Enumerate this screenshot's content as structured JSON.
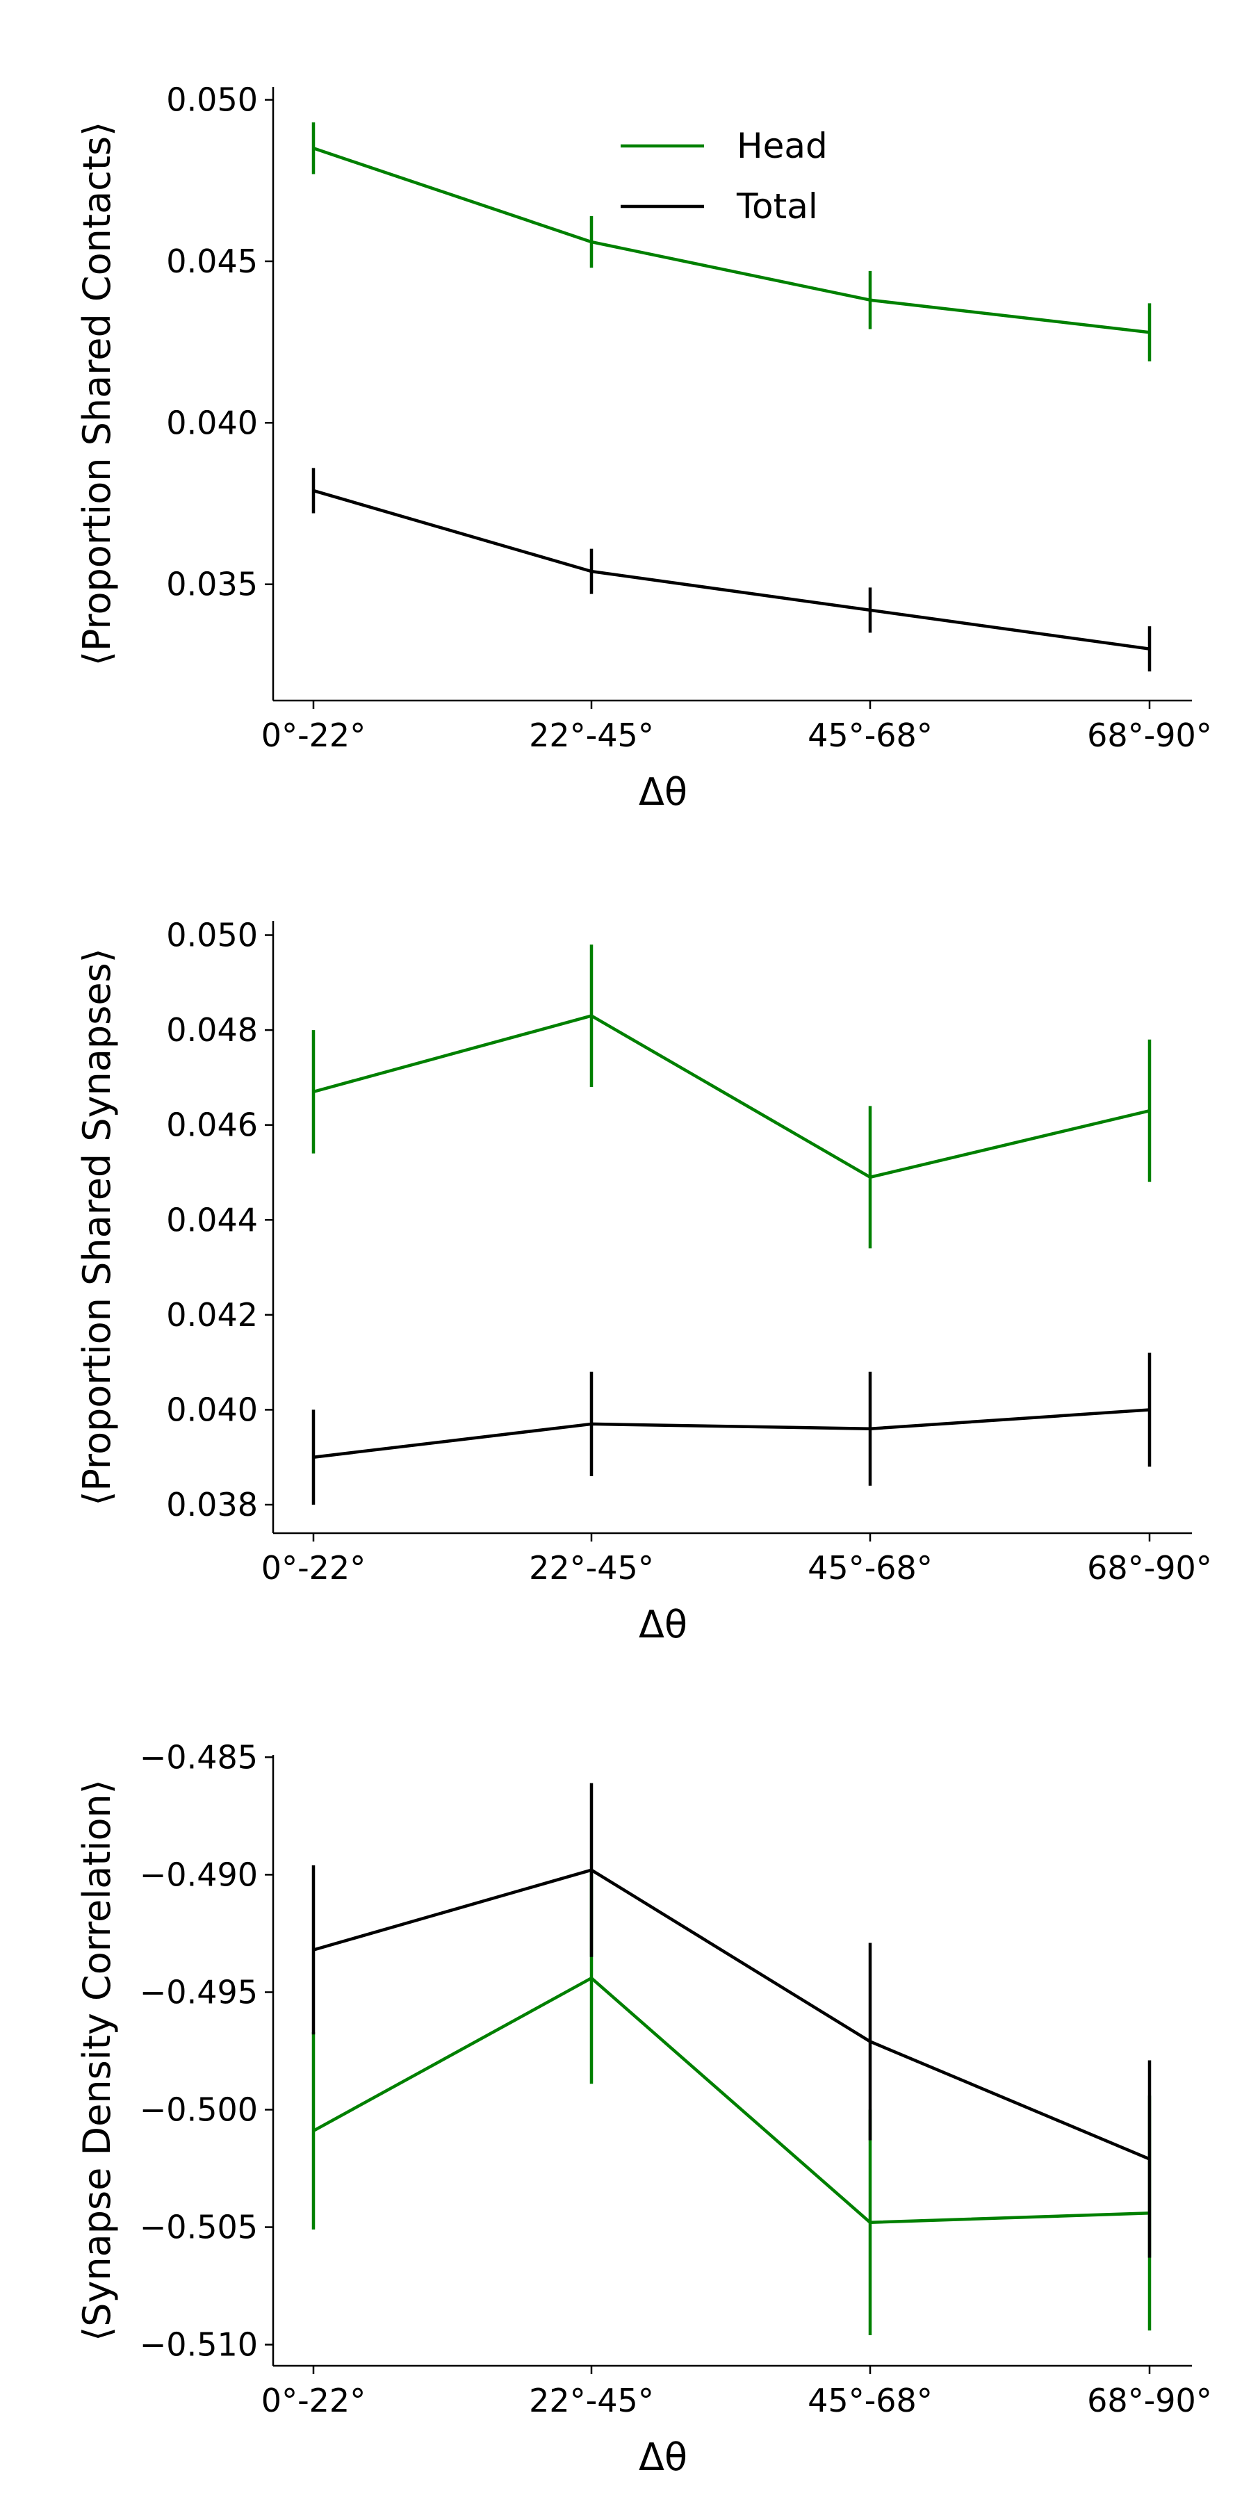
{
  "legend": [
    {
      "label": "Head",
      "color": "#008000"
    },
    {
      "label": "Total",
      "color": "#000000"
    }
  ],
  "chart_data": [
    {
      "type": "line",
      "title": "",
      "xlabel": "Δθ",
      "ylabel": "⟨Proportion Shared Contacts⟩",
      "categories": [
        "0°-22°",
        "22°-45°",
        "45°-68°",
        "68°-90°"
      ],
      "ylim": [
        0.0314,
        0.0504
      ],
      "yticks": [
        0.035,
        0.04,
        0.045,
        0.05
      ],
      "ytick_labels": [
        "0.035",
        "0.040",
        "0.045",
        "0.050"
      ],
      "legend_position": "top-center",
      "series": [
        {
          "name": "Head",
          "color": "#008000",
          "values": [
            0.0485,
            0.0456,
            0.0438,
            0.0428
          ],
          "errors": [
            0.0008,
            0.0008,
            0.0009,
            0.0009
          ]
        },
        {
          "name": "Total",
          "color": "#000000",
          "values": [
            0.0379,
            0.0354,
            0.0342,
            0.033
          ],
          "errors": [
            0.0007,
            0.0007,
            0.0007,
            0.0007
          ]
        }
      ]
    },
    {
      "type": "line",
      "title": "",
      "xlabel": "Δθ",
      "ylabel": "⟨Proportion Shared Synapses⟩",
      "categories": [
        "0°-22°",
        "22°-45°",
        "45°-68°",
        "68°-90°"
      ],
      "ylim": [
        0.0374,
        0.0503
      ],
      "yticks": [
        0.038,
        0.04,
        0.042,
        0.044,
        0.046,
        0.048,
        0.05
      ],
      "ytick_labels": [
        "0.038",
        "0.040",
        "0.042",
        "0.044",
        "0.046",
        "0.048",
        "0.050"
      ],
      "series": [
        {
          "name": "Head",
          "color": "#008000",
          "values": [
            0.0467,
            0.0483,
            0.0449,
            0.0463
          ],
          "errors": [
            0.0013,
            0.0015,
            0.0015,
            0.0015
          ]
        },
        {
          "name": "Total",
          "color": "#000000",
          "values": [
            0.039,
            0.0397,
            0.0396,
            0.04
          ],
          "errors": [
            0.001,
            0.0011,
            0.0012,
            0.0012
          ]
        }
      ]
    },
    {
      "type": "line",
      "title": "",
      "xlabel": "Δθ",
      "ylabel": "⟨Synapse Density Correlation⟩",
      "categories": [
        "0°-22°",
        "22°-45°",
        "45°-68°",
        "68°-90°"
      ],
      "ylim": [
        -0.5109,
        -0.4849
      ],
      "yticks": [
        -0.51,
        -0.505,
        -0.5,
        -0.495,
        -0.49,
        -0.485
      ],
      "ytick_labels": [
        "−0.510",
        "−0.505",
        "−0.500",
        "−0.495",
        "−0.490",
        "−0.485"
      ],
      "series": [
        {
          "name": "Head",
          "color": "#008000",
          "values": [
            -0.5009,
            -0.4944,
            -0.5048,
            -0.5044
          ],
          "errors": [
            0.0042,
            0.0045,
            0.0048,
            0.005
          ]
        },
        {
          "name": "Total",
          "color": "#000000",
          "values": [
            -0.4932,
            -0.4898,
            -0.4971,
            -0.5021
          ],
          "errors": [
            0.0036,
            0.0037,
            0.0042,
            0.0042
          ]
        }
      ]
    }
  ]
}
